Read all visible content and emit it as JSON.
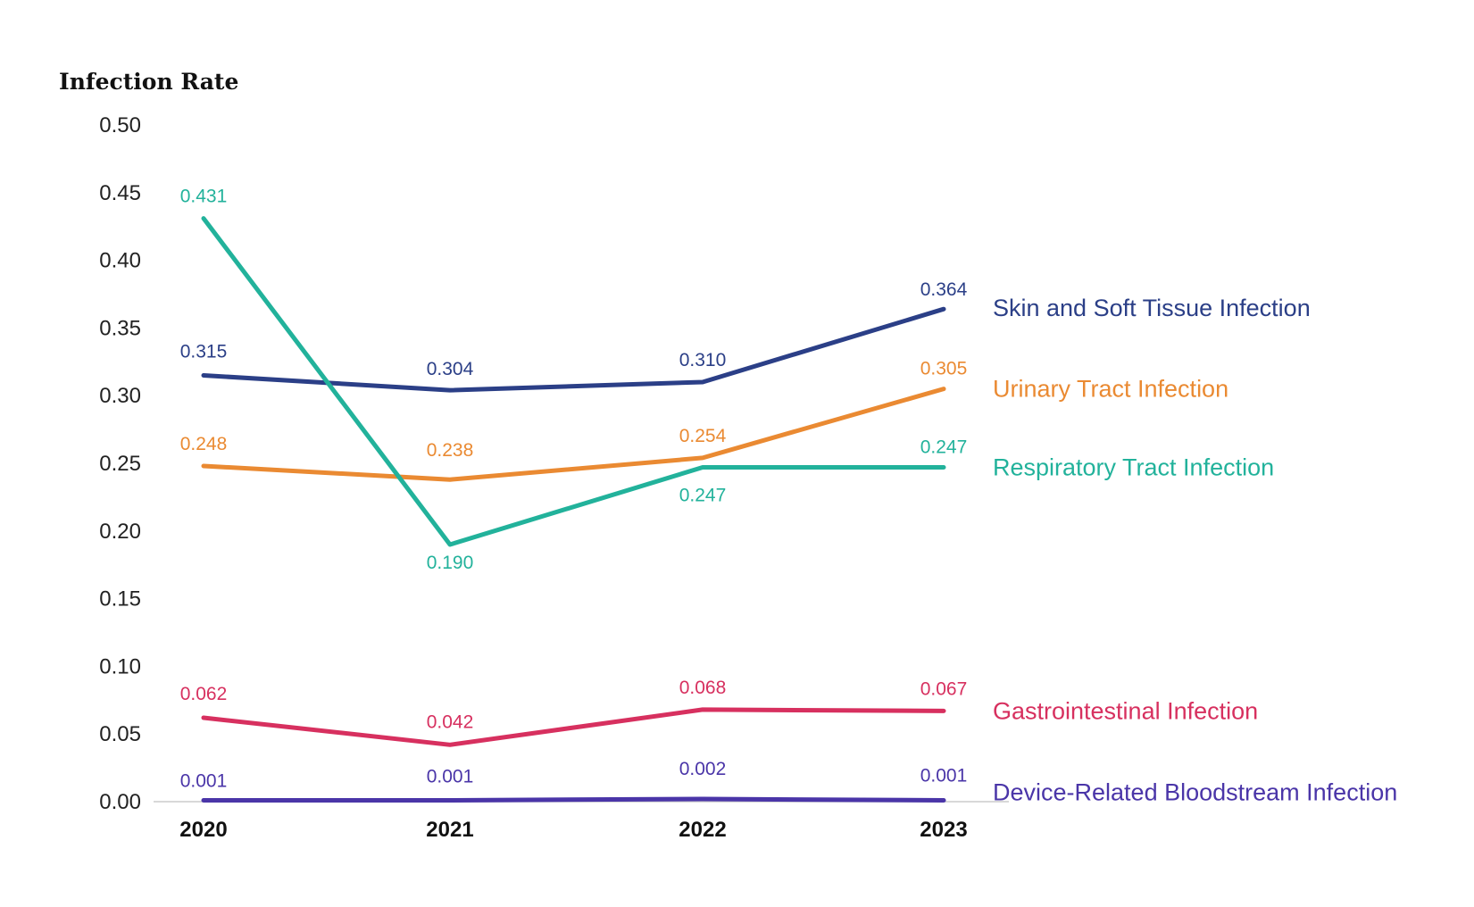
{
  "chart_data": {
    "type": "line",
    "ylabel": "Infection Rate",
    "ylim": [
      0,
      0.5
    ],
    "yticks": [
      "0.00",
      "0.05",
      "0.10",
      "0.15",
      "0.20",
      "0.25",
      "0.30",
      "0.35",
      "0.40",
      "0.45",
      "0.50"
    ],
    "categories": [
      "2020",
      "2021",
      "2022",
      "2023"
    ],
    "legend": "direct labels at right end of each line",
    "grid": false,
    "series": [
      {
        "name": "Skin and Soft Tissue Infection",
        "color": "#2b3f87",
        "values": [
          0.315,
          0.304,
          0.31,
          0.364
        ],
        "labels": [
          "0.315",
          "0.304",
          "0.310",
          "0.364"
        ]
      },
      {
        "name": "Urinary Tract Infection",
        "color": "#ea8a32",
        "values": [
          0.248,
          0.238,
          0.254,
          0.305
        ],
        "labels": [
          "0.248",
          "0.238",
          "0.254",
          "0.305"
        ]
      },
      {
        "name": "Respiratory Tract Infection",
        "color": "#22b29b",
        "values": [
          0.431,
          0.19,
          0.247,
          0.247
        ],
        "labels": [
          "0.431",
          "0.190",
          "0.247",
          "0.247"
        ]
      },
      {
        "name": "Gastrointestinal Infection",
        "color": "#d7305f",
        "values": [
          0.062,
          0.042,
          0.068,
          0.067
        ],
        "labels": [
          "0.062",
          "0.042",
          "0.068",
          "0.067"
        ]
      },
      {
        "name": "Device-Related Bloodstream Infection",
        "color": "#4a35a8",
        "values": [
          0.001,
          0.001,
          0.002,
          0.001
        ],
        "labels": [
          "0.001",
          "0.001",
          "0.002",
          "0.001"
        ]
      }
    ]
  }
}
